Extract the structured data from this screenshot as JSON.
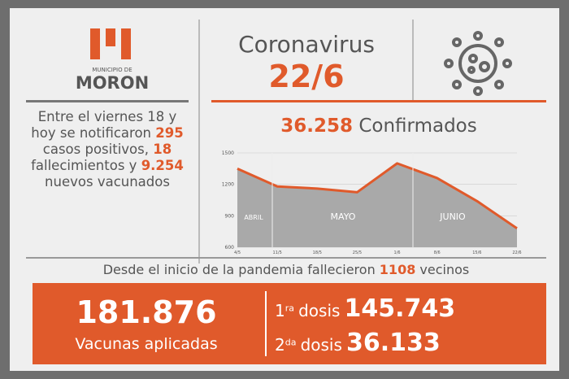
{
  "logo": {
    "top": "MUNICIPIO DE",
    "name": "MORON"
  },
  "header": {
    "title": "Coronavirus",
    "date": "22/6"
  },
  "summary": [
    "Entre el viernes 18 y hoy se notificaron",
    "295",
    "casos positivos,",
    "18",
    "fallecimientos y",
    "9.254",
    "nuevos vacunados"
  ],
  "confirmed": {
    "number": "36.258",
    "label": "Confirmados"
  },
  "deaths": {
    "before": "Desde el inicio de la pandemia fallecieron",
    "number": "1108",
    "after": "vecinos"
  },
  "vaccines": {
    "total": "181.876",
    "total_label": "Vacunas aplicadas",
    "first": {
      "ordinal": "1",
      "suffix": "ra",
      "label": "dosis",
      "number": "145.743"
    },
    "second": {
      "ordinal": "2",
      "suffix": "da",
      "label": "dosis",
      "number": "36.133"
    }
  },
  "chart_data": {
    "type": "area",
    "categories": [
      "4/5",
      "11/5",
      "18/5",
      "25/5",
      "1/6",
      "8/6",
      "15/6",
      "22/6"
    ],
    "values": [
      1350,
      1180,
      1160,
      1125,
      1400,
      1260,
      1040,
      780
    ],
    "color": "#e05a2b",
    "fill": "#a9a9a9",
    "ylim": [
      600,
      1500
    ],
    "yticks": [
      600,
      900,
      1200,
      1500
    ],
    "grid": true,
    "annotations": [
      "ABRIL",
      "MAYO",
      "JUNIO"
    ]
  }
}
